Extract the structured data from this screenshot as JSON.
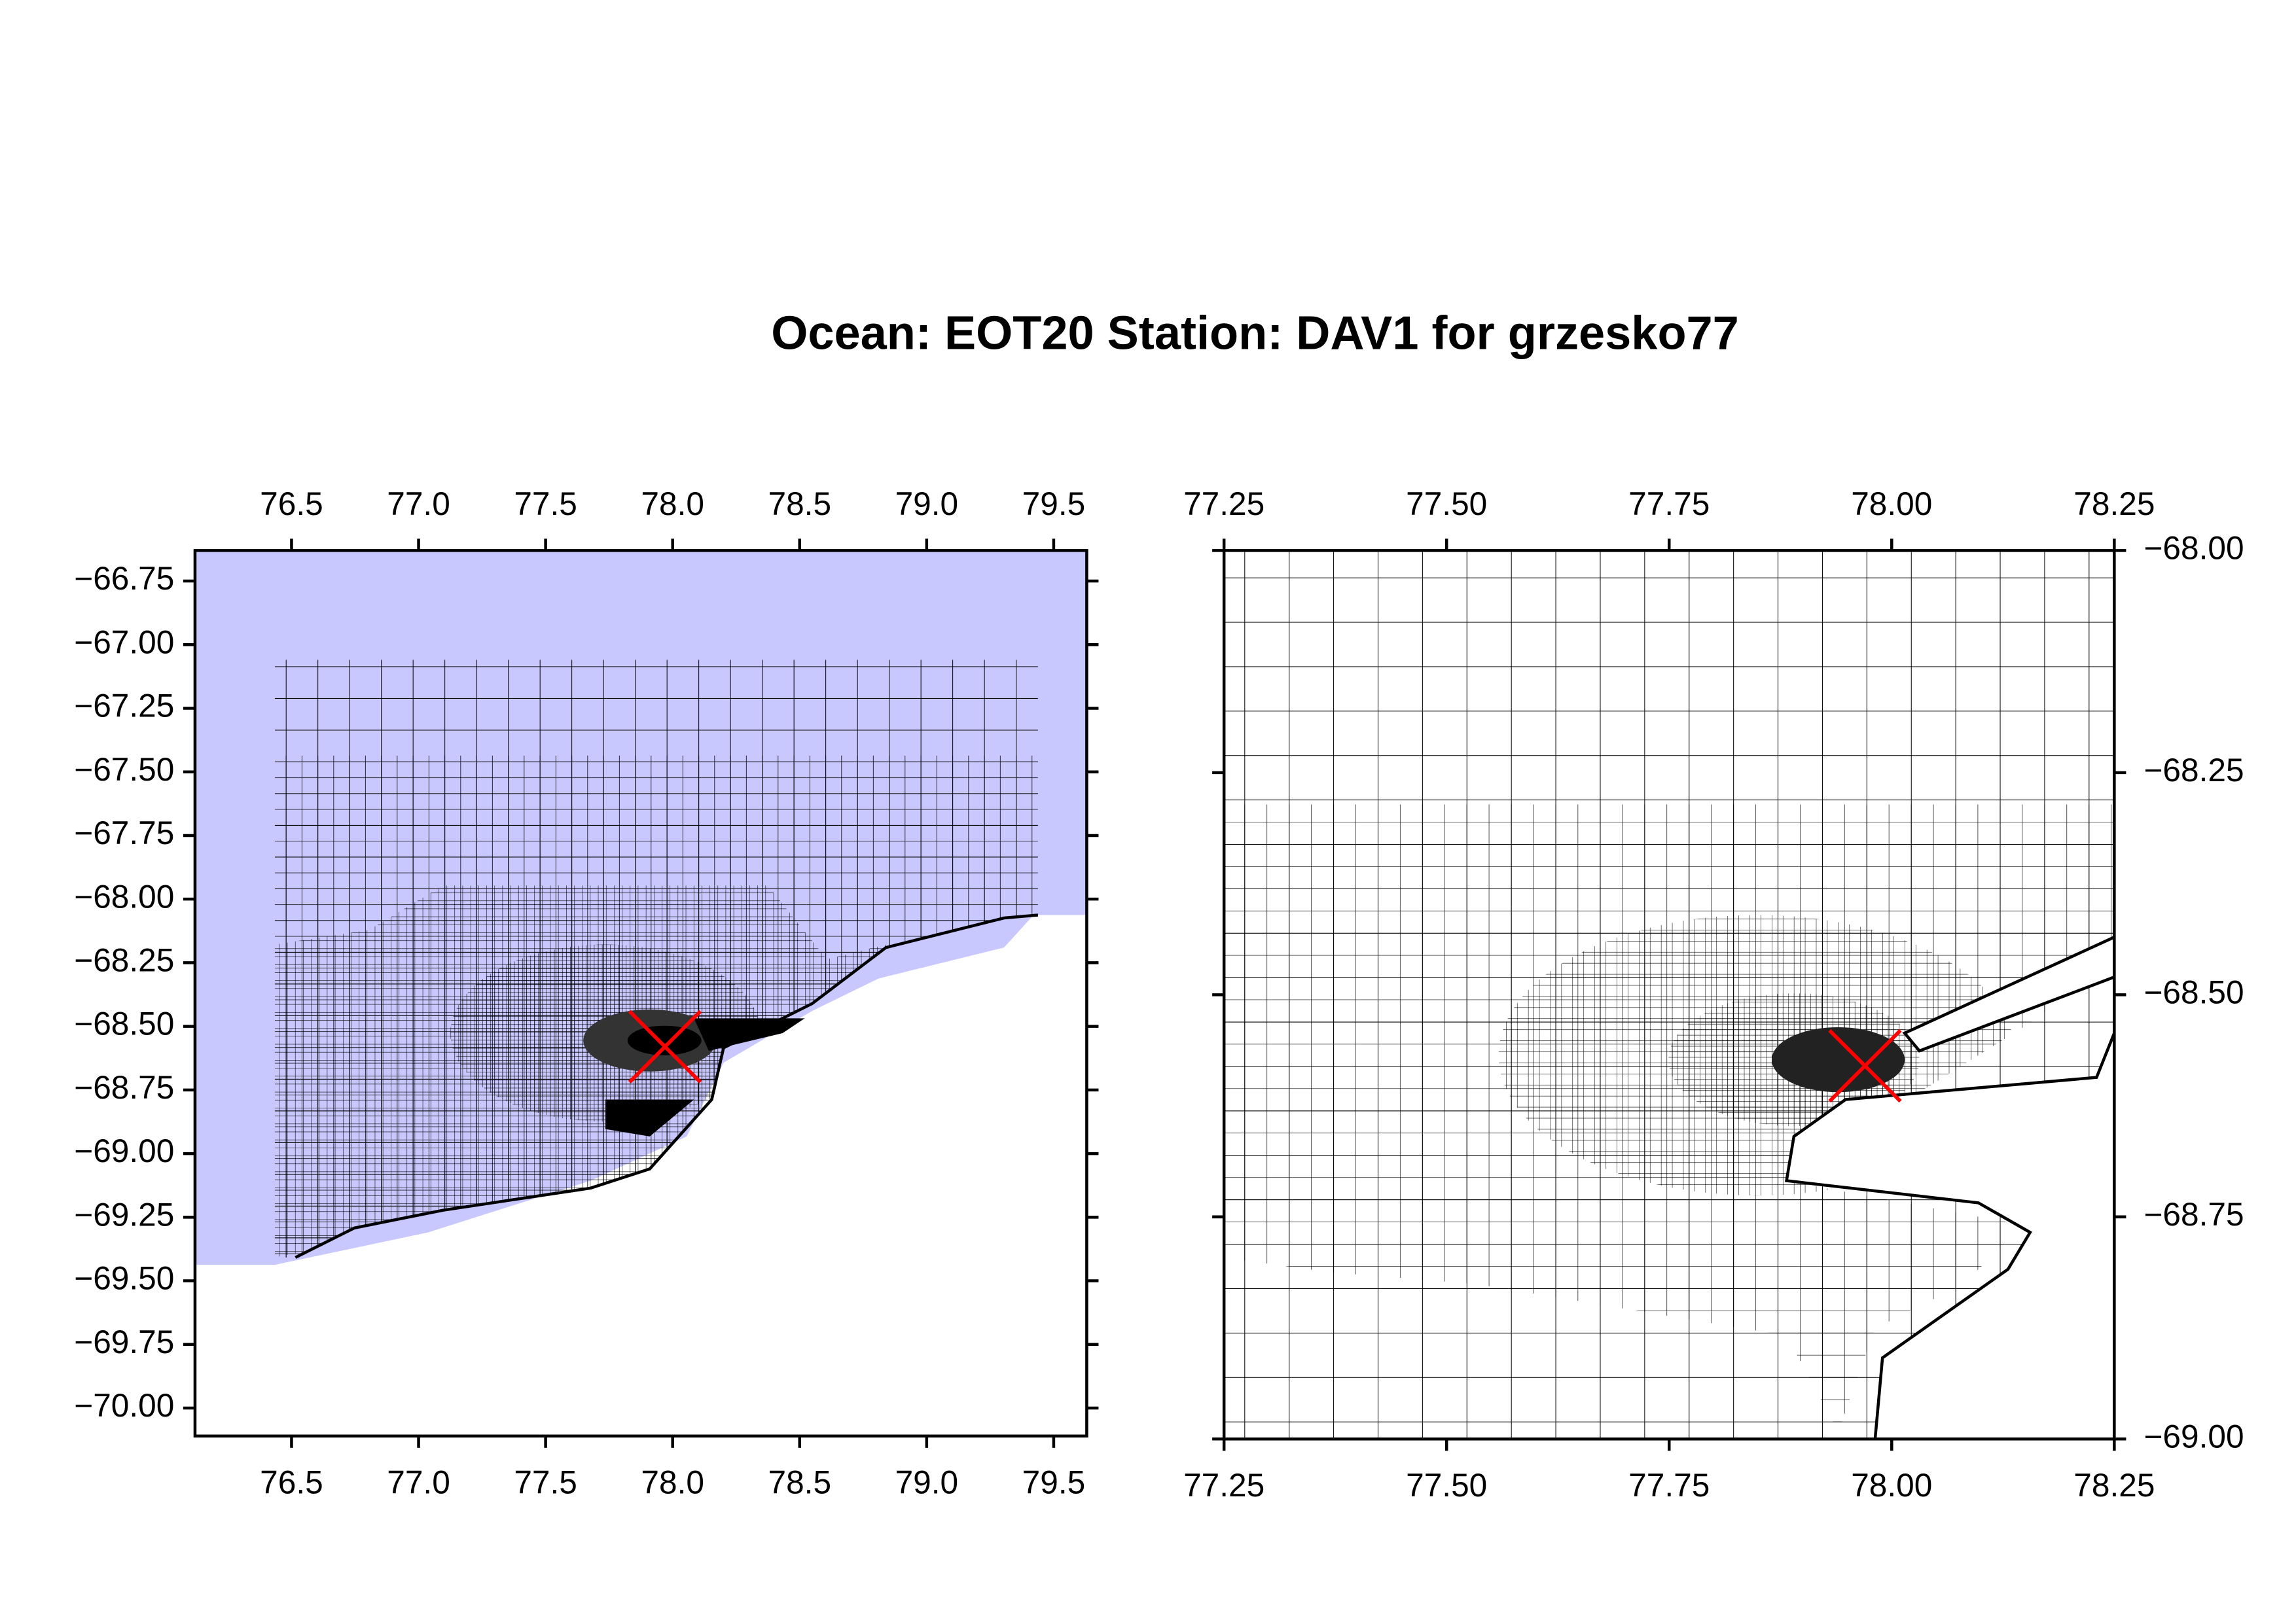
{
  "title": "Ocean: EOT20  Station: DAV1  for grzesko77",
  "chart_data": [
    {
      "type": "map",
      "xlim": [
        76.12,
        79.63
      ],
      "ylim": [
        -70.11,
        -66.63
      ],
      "xticks": [
        76.5,
        {
          "value": 77,
          "label": "77.0"
        },
        77.5,
        {
          "value": 78,
          "label": "78.0"
        },
        78.5,
        {
          "value": 79,
          "label": "79.0"
        },
        79.5
      ],
      "yticks": [
        {
          "value": -66.75,
          "label": "−66.75"
        },
        {
          "value": -67,
          "label": "−67.00"
        },
        {
          "value": -67.25,
          "label": "−67.25"
        },
        {
          "value": -67.5,
          "label": "−67.50"
        },
        {
          "value": -67.75,
          "label": "−67.75"
        },
        {
          "value": -68,
          "label": "−68.00"
        },
        {
          "value": -68.25,
          "label": "−68.25"
        },
        {
          "value": -68.5,
          "label": "−68.50"
        },
        {
          "value": -68.75,
          "label": "−68.75"
        },
        {
          "value": -69,
          "label": "−69.00"
        },
        {
          "value": -69.25,
          "label": "−69.25"
        },
        {
          "value": -69.5,
          "label": "−69.50"
        },
        {
          "value": -69.75,
          "label": "−69.75"
        },
        {
          "value": -70,
          "label": "−70.00"
        }
      ],
      "marker": {
        "x": 77.97,
        "y": -68.58,
        "color": "#ff0000"
      }
    },
    {
      "type": "map",
      "xlim": [
        77.25,
        78.25
      ],
      "ylim": [
        -69,
        -68
      ],
      "xticks": [
        77.25,
        {
          "value": 77.5,
          "label": "77.50"
        },
        77.75,
        {
          "value": 78,
          "label": "78.00"
        },
        78.25
      ],
      "yticks": [
        {
          "value": -68,
          "label": "−68.00"
        },
        {
          "value": -68.25,
          "label": "−68.25"
        },
        {
          "value": -68.5,
          "label": "−68.50"
        },
        {
          "value": -68.75,
          "label": "−68.75"
        },
        {
          "value": -69,
          "label": "−69.00"
        }
      ],
      "marker": {
        "x": 77.97,
        "y": -68.58,
        "color": "#ff0000"
      }
    }
  ]
}
